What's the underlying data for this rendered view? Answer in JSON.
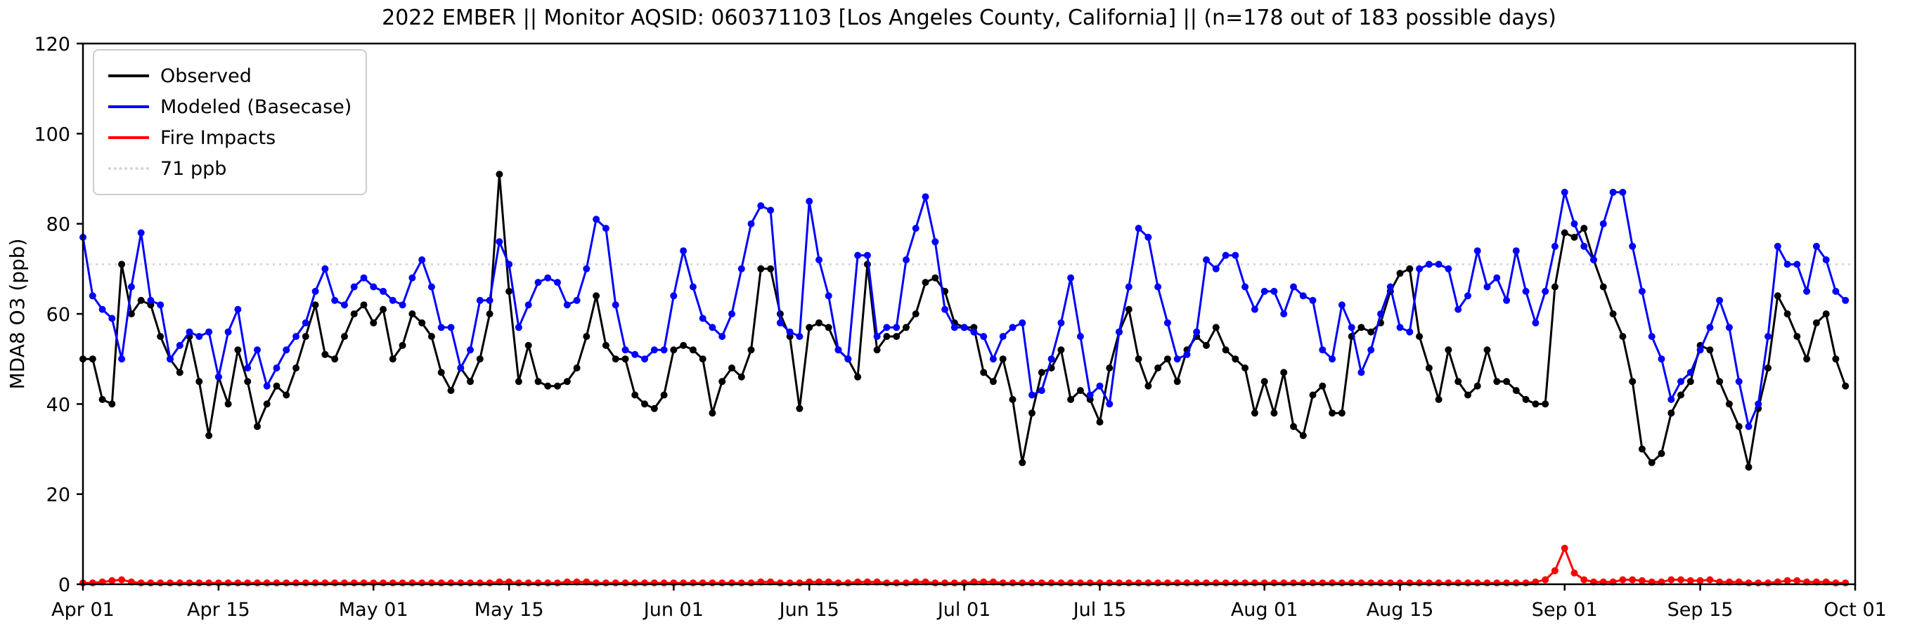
{
  "title": "2022 EMBER || Monitor AQSID: 060371103 [Los Angeles County, California] || (n=178 out of 183 possible days)",
  "ylabel": "MDA8 O3 (ppb)",
  "legend": {
    "items": [
      {
        "label": "Observed",
        "color": "#000000",
        "style": "solid"
      },
      {
        "label": "Modeled (Basecase)",
        "color": "#0000ff",
        "style": "solid"
      },
      {
        "label": "Fire Impacts",
        "color": "#ff0000",
        "style": "solid"
      },
      {
        "label": "71 ppb",
        "color": "#d3d3d3",
        "style": "dotted"
      }
    ]
  },
  "chart_data": {
    "type": "line",
    "title": "2022 EMBER || Monitor AQSID: 060371103 [Los Angeles County, California] || (n=178 out of 183 possible days)",
    "xlabel": "",
    "ylabel": "MDA8 O3 (ppb)",
    "x_resolution": "daily",
    "xlim": [
      0,
      183
    ],
    "ylim": [
      0,
      120
    ],
    "yticks": [
      0,
      20,
      40,
      60,
      80,
      100,
      120
    ],
    "xticks": [
      {
        "pos": 0,
        "label": "Apr 01"
      },
      {
        "pos": 14,
        "label": "Apr 15"
      },
      {
        "pos": 30,
        "label": "May 01"
      },
      {
        "pos": 44,
        "label": "May 15"
      },
      {
        "pos": 61,
        "label": "Jun 01"
      },
      {
        "pos": 75,
        "label": "Jun 15"
      },
      {
        "pos": 91,
        "label": "Jul 01"
      },
      {
        "pos": 105,
        "label": "Jul 15"
      },
      {
        "pos": 122,
        "label": "Aug 01"
      },
      {
        "pos": 136,
        "label": "Aug 15"
      },
      {
        "pos": 153,
        "label": "Sep 01"
      },
      {
        "pos": 167,
        "label": "Sep 15"
      },
      {
        "pos": 183,
        "label": "Oct 01"
      }
    ],
    "threshold": {
      "value": 71,
      "label": "71 ppb",
      "color": "#d3d3d3",
      "linestyle": "dotted"
    },
    "legend_position": "upper left",
    "grid": false,
    "series": [
      {
        "name": "Observed",
        "color": "#000000",
        "values": [
          50,
          50,
          41,
          40,
          71,
          60,
          63,
          62,
          55,
          50,
          47,
          55,
          45,
          33,
          46,
          40,
          52,
          45,
          35,
          40,
          44,
          42,
          48,
          55,
          62,
          51,
          50,
          55,
          60,
          62,
          58,
          61,
          50,
          53,
          60,
          58,
          55,
          47,
          43,
          48,
          45,
          50,
          60,
          91,
          65,
          45,
          53,
          45,
          44,
          44,
          45,
          48,
          55,
          64,
          53,
          50,
          50,
          42,
          40,
          39,
          42,
          52,
          53,
          52,
          50,
          38,
          45,
          48,
          46,
          52,
          70,
          70,
          60,
          55,
          39,
          57,
          58,
          57,
          52,
          50,
          46,
          71,
          52,
          55,
          55,
          57,
          60,
          67,
          68,
          65,
          58,
          57,
          57,
          47,
          45,
          50,
          41,
          27,
          38,
          47,
          48,
          52,
          41,
          43,
          41,
          36,
          48,
          56,
          61,
          50,
          44,
          48,
          50,
          45,
          52,
          55,
          53,
          57,
          52,
          50,
          48,
          38,
          45,
          38,
          47,
          35,
          33,
          42,
          44,
          38,
          38,
          55,
          57,
          56,
          58,
          65,
          69,
          70,
          55,
          48,
          41,
          52,
          45,
          42,
          44,
          52,
          45,
          45,
          43,
          41,
          40,
          40,
          66,
          78,
          77,
          79,
          72,
          66,
          60,
          55,
          45,
          30,
          27,
          29,
          38,
          42,
          45,
          53,
          52,
          45,
          40,
          35,
          26,
          39,
          48,
          64,
          60,
          55,
          50,
          58,
          60,
          50,
          44
        ]
      },
      {
        "name": "Modeled (Basecase)",
        "color": "#0000ff",
        "values": [
          77,
          64,
          61,
          59,
          50,
          66,
          78,
          63,
          62,
          50,
          53,
          56,
          55,
          56,
          46,
          56,
          61,
          48,
          52,
          44,
          48,
          52,
          55,
          58,
          65,
          70,
          63,
          62,
          66,
          68,
          66,
          65,
          63,
          62,
          68,
          72,
          66,
          57,
          57,
          48,
          52,
          63,
          63,
          76,
          71,
          57,
          62,
          67,
          68,
          67,
          62,
          63,
          70,
          81,
          79,
          62,
          52,
          51,
          50,
          52,
          52,
          64,
          74,
          66,
          59,
          57,
          55,
          60,
          70,
          80,
          84,
          83,
          58,
          56,
          55,
          85,
          72,
          64,
          52,
          50,
          73,
          73,
          55,
          57,
          57,
          72,
          79,
          86,
          76,
          61,
          57,
          57,
          56,
          55,
          50,
          55,
          57,
          58,
          42,
          43,
          50,
          58,
          68,
          55,
          42,
          44,
          40,
          56,
          66,
          79,
          77,
          66,
          58,
          50,
          51,
          56,
          72,
          70,
          73,
          73,
          66,
          61,
          65,
          65,
          60,
          66,
          64,
          63,
          52,
          50,
          62,
          57,
          47,
          52,
          60,
          66,
          57,
          56,
          70,
          71,
          71,
          70,
          61,
          64,
          74,
          66,
          68,
          63,
          74,
          65,
          58,
          65,
          75,
          87,
          80,
          75,
          72,
          80,
          87,
          87,
          75,
          65,
          55,
          50,
          41,
          45,
          47,
          52,
          57,
          63,
          57,
          45,
          35,
          40,
          55,
          75,
          71,
          71,
          65,
          75,
          72,
          65,
          63
        ]
      },
      {
        "name": "Fire Impacts",
        "color": "#ff0000",
        "values": [
          0.3,
          0.3,
          0.5,
          0.8,
          1,
          0.5,
          0.3,
          0.3,
          0.3,
          0.3,
          0.3,
          0.3,
          0.3,
          0.3,
          0.3,
          0.3,
          0.3,
          0.3,
          0.3,
          0.3,
          0.3,
          0.3,
          0.3,
          0.3,
          0.3,
          0.3,
          0.3,
          0.3,
          0.3,
          0.3,
          0.3,
          0.3,
          0.3,
          0.3,
          0.3,
          0.3,
          0.3,
          0.3,
          0.3,
          0.3,
          0.3,
          0.3,
          0.3,
          0.5,
          0.5,
          0.3,
          0.3,
          0.3,
          0.3,
          0.3,
          0.5,
          0.5,
          0.5,
          0.3,
          0.3,
          0.3,
          0.3,
          0.3,
          0.3,
          0.3,
          0.3,
          0.3,
          0.3,
          0.3,
          0.3,
          0.3,
          0.3,
          0.3,
          0.3,
          0.3,
          0.5,
          0.5,
          0.3,
          0.3,
          0.3,
          0.5,
          0.5,
          0.5,
          0.3,
          0.3,
          0.5,
          0.5,
          0.5,
          0.3,
          0.3,
          0.3,
          0.5,
          0.5,
          0.3,
          0.3,
          0.3,
          0.3,
          0.5,
          0.5,
          0.5,
          0.3,
          0.3,
          0.3,
          0.3,
          0.3,
          0.3,
          0.3,
          0.3,
          0.3,
          0.3,
          0.3,
          0.3,
          0.3,
          0.3,
          0.3,
          0.3,
          0.3,
          0.3,
          0.3,
          0.3,
          0.3,
          0.3,
          0.3,
          0.3,
          0.3,
          0.3,
          0.3,
          0.3,
          0.3,
          0.3,
          0.3,
          0.3,
          0.3,
          0.3,
          0.3,
          0.3,
          0.3,
          0.3,
          0.3,
          0.3,
          0.3,
          0.3,
          0.3,
          0.3,
          0.3,
          0.3,
          0.3,
          0.3,
          0.3,
          0.3,
          0.3,
          0.3,
          0.3,
          0.3,
          0.3,
          0.5,
          1,
          3,
          8,
          2.5,
          1,
          0.5,
          0.5,
          0.5,
          1,
          1,
          0.8,
          0.5,
          0.5,
          1,
          1,
          0.8,
          0.8,
          1,
          0.5,
          0.5,
          0.5,
          0.3,
          0.3,
          0.3,
          0.5,
          0.8,
          0.8,
          0.5,
          0.5,
          0.5,
          0.3,
          0.3
        ]
      }
    ]
  }
}
